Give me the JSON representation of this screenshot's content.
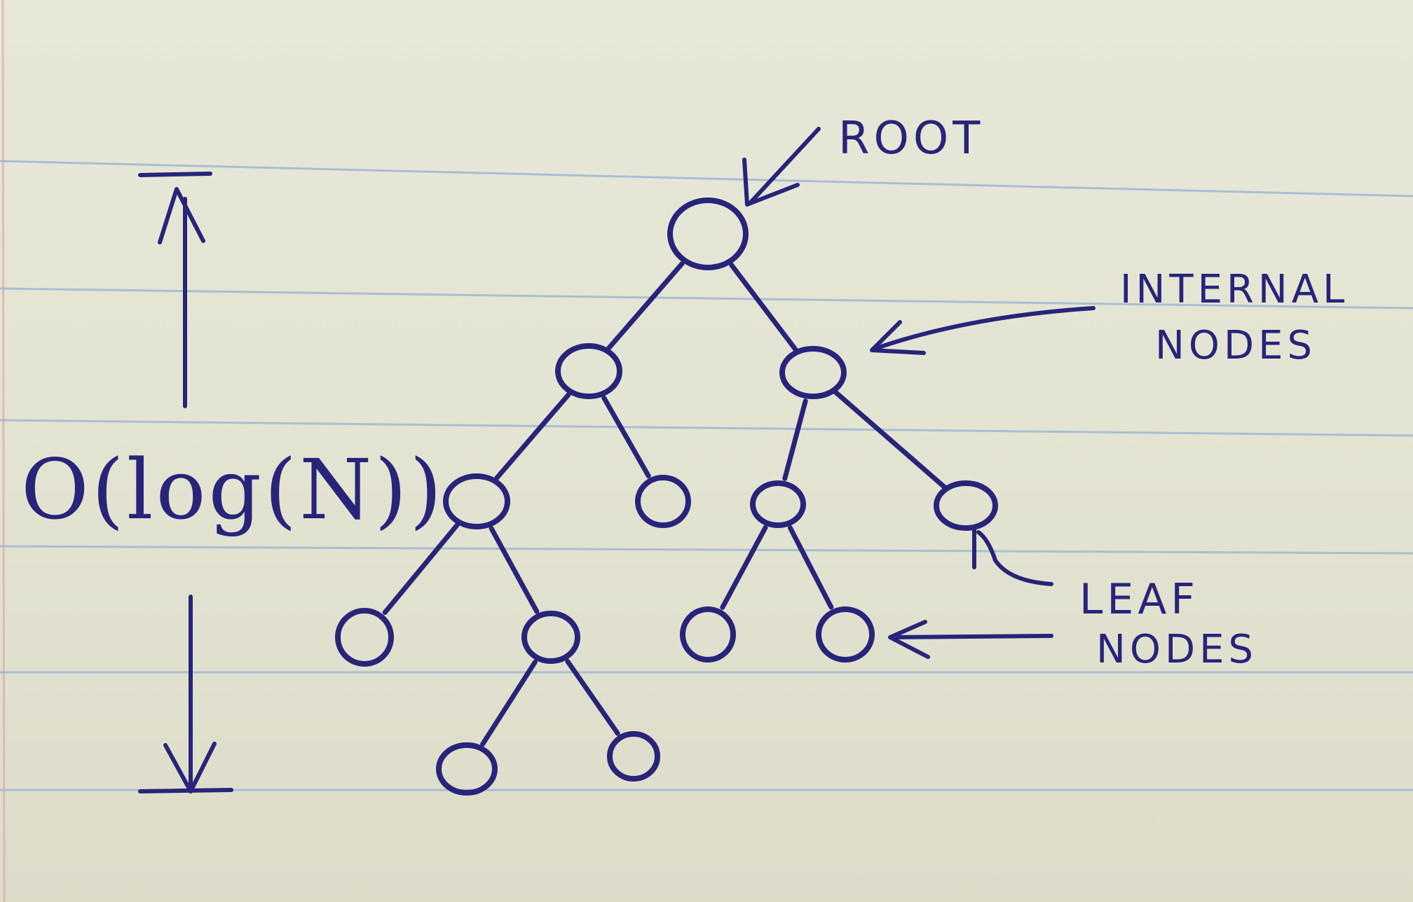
{
  "labels": {
    "root": "ROOT",
    "internal_line1": "INTERNAL",
    "internal_line2": "NODES",
    "leaf_line1": "LEAF",
    "leaf_line2": "NODES",
    "height": "O(log(N))"
  },
  "colors": {
    "ink": "#27247a",
    "paper": "#e5e5d5",
    "ruling": "#9bb4d6",
    "margin": "#d9a0a8"
  },
  "tree": {
    "nodes": [
      {
        "id": "root",
        "kind": "root"
      },
      {
        "id": "n1",
        "kind": "internal"
      },
      {
        "id": "n2",
        "kind": "internal"
      },
      {
        "id": "n3",
        "kind": "internal"
      },
      {
        "id": "n4",
        "kind": "leaf"
      },
      {
        "id": "n5",
        "kind": "internal"
      },
      {
        "id": "n6",
        "kind": "leaf"
      },
      {
        "id": "n7",
        "kind": "leaf"
      },
      {
        "id": "n8",
        "kind": "internal"
      },
      {
        "id": "n9",
        "kind": "leaf"
      },
      {
        "id": "n10",
        "kind": "leaf"
      },
      {
        "id": "n11",
        "kind": "leaf"
      },
      {
        "id": "n12",
        "kind": "leaf"
      }
    ],
    "edges": [
      [
        "root",
        "n1"
      ],
      [
        "root",
        "n2"
      ],
      [
        "n1",
        "n3"
      ],
      [
        "n1",
        "n4"
      ],
      [
        "n2",
        "n5"
      ],
      [
        "n2",
        "n6"
      ],
      [
        "n3",
        "n7"
      ],
      [
        "n3",
        "n8"
      ],
      [
        "n5",
        "n9"
      ],
      [
        "n5",
        "n10"
      ],
      [
        "n8",
        "n11"
      ],
      [
        "n8",
        "n12"
      ]
    ]
  }
}
